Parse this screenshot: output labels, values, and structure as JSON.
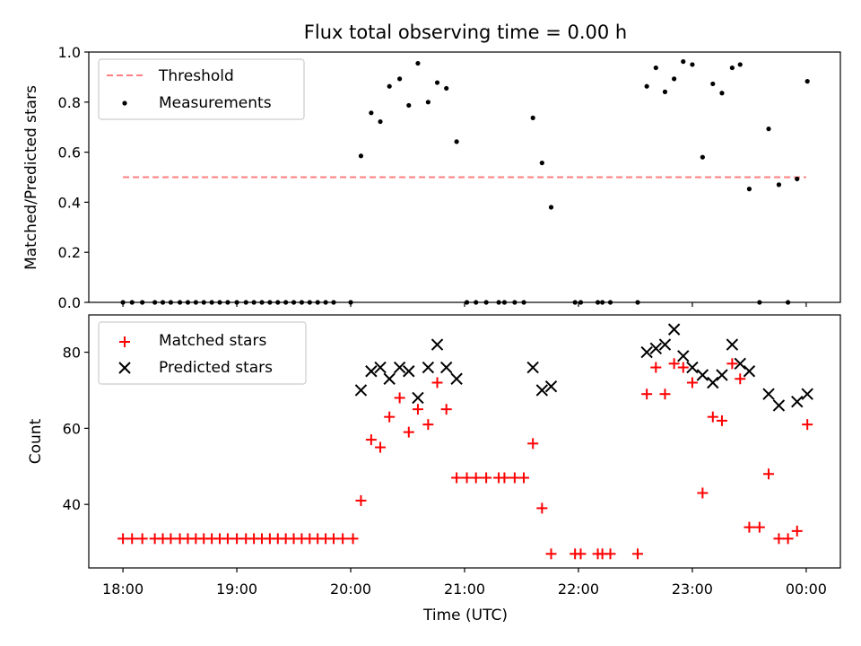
{
  "chart_data": {
    "title": "Flux total observing time = 0.00 h",
    "xlabel": "Time (UTC)",
    "x_ticks": [
      "18:00",
      "19:00",
      "20:00",
      "21:00",
      "22:00",
      "23:00",
      "00:00"
    ],
    "x_domain_hours": [
      17.7,
      24.3
    ],
    "top": {
      "type": "scatter",
      "ylabel": "Matched/Predicted stars",
      "ylim": [
        0,
        1.0
      ],
      "yticks": [
        "0.0",
        "0.2",
        "0.4",
        "0.6",
        "0.8",
        "1.0"
      ],
      "ytick_values": [
        0,
        0.2,
        0.4,
        0.6,
        0.8,
        1.0
      ],
      "legend": [
        "Threshold",
        "Measurements"
      ],
      "threshold": {
        "value": 0.5,
        "x_start": 18.0,
        "x_end": 24.0,
        "color": "#ff7f7f"
      },
      "measurements": [
        [
          18.0,
          0
        ],
        [
          18.08,
          0
        ],
        [
          18.17,
          0
        ],
        [
          18.28,
          0
        ],
        [
          18.35,
          0
        ],
        [
          18.42,
          0
        ],
        [
          18.5,
          0
        ],
        [
          18.57,
          0
        ],
        [
          18.64,
          0
        ],
        [
          18.71,
          0
        ],
        [
          18.78,
          0
        ],
        [
          18.85,
          0
        ],
        [
          18.92,
          0
        ],
        [
          19.0,
          0
        ],
        [
          19.08,
          0
        ],
        [
          19.15,
          0
        ],
        [
          19.22,
          0
        ],
        [
          19.29,
          0
        ],
        [
          19.36,
          0
        ],
        [
          19.43,
          0
        ],
        [
          19.5,
          0
        ],
        [
          19.57,
          0
        ],
        [
          19.64,
          0
        ],
        [
          19.71,
          0
        ],
        [
          19.78,
          0
        ],
        [
          19.85,
          0
        ],
        [
          20.0,
          0
        ],
        [
          20.09,
          0.585
        ],
        [
          20.18,
          0.757
        ],
        [
          20.26,
          0.722
        ],
        [
          20.34,
          0.863
        ],
        [
          20.43,
          0.893
        ],
        [
          20.51,
          0.787
        ],
        [
          20.59,
          0.955
        ],
        [
          20.68,
          0.8
        ],
        [
          20.76,
          0.878
        ],
        [
          20.84,
          0.855
        ],
        [
          20.93,
          0.642
        ],
        [
          21.02,
          0
        ],
        [
          21.1,
          0
        ],
        [
          21.19,
          0
        ],
        [
          21.3,
          0
        ],
        [
          21.35,
          0
        ],
        [
          21.44,
          0
        ],
        [
          21.52,
          0
        ],
        [
          21.6,
          0.737
        ],
        [
          21.68,
          0.557
        ],
        [
          21.76,
          0.38
        ],
        [
          21.97,
          0
        ],
        [
          22.02,
          0
        ],
        [
          22.17,
          0
        ],
        [
          22.21,
          0
        ],
        [
          22.28,
          0
        ],
        [
          22.52,
          0
        ],
        [
          22.6,
          0.863
        ],
        [
          22.68,
          0.937
        ],
        [
          22.76,
          0.841
        ],
        [
          22.84,
          0.893
        ],
        [
          22.92,
          0.962
        ],
        [
          23.0,
          0.95
        ],
        [
          23.09,
          0.58
        ],
        [
          23.18,
          0.873
        ],
        [
          23.26,
          0.836
        ],
        [
          23.35,
          0.937
        ],
        [
          23.42,
          0.95
        ],
        [
          23.5,
          0.453
        ],
        [
          23.59,
          0
        ],
        [
          23.67,
          0.693
        ],
        [
          23.76,
          0.47
        ],
        [
          23.84,
          0
        ],
        [
          23.92,
          0.493
        ],
        [
          24.01,
          0.883
        ]
      ]
    },
    "bottom": {
      "type": "scatter",
      "ylabel": "Count",
      "ylim": [
        23.3,
        89.8
      ],
      "yticks": [
        "40",
        "60",
        "80"
      ],
      "ytick_values": [
        40,
        60,
        80
      ],
      "legend": [
        "Matched stars",
        "Predicted stars"
      ],
      "matched": [
        [
          18.0,
          31
        ],
        [
          18.08,
          31
        ],
        [
          18.17,
          31
        ],
        [
          18.28,
          31
        ],
        [
          18.35,
          31
        ],
        [
          18.42,
          31
        ],
        [
          18.5,
          31
        ],
        [
          18.57,
          31
        ],
        [
          18.64,
          31
        ],
        [
          18.71,
          31
        ],
        [
          18.78,
          31
        ],
        [
          18.85,
          31
        ],
        [
          18.92,
          31
        ],
        [
          19.0,
          31
        ],
        [
          19.08,
          31
        ],
        [
          19.15,
          31
        ],
        [
          19.22,
          31
        ],
        [
          19.29,
          31
        ],
        [
          19.36,
          31
        ],
        [
          19.43,
          31
        ],
        [
          19.5,
          31
        ],
        [
          19.57,
          31
        ],
        [
          19.64,
          31
        ],
        [
          19.71,
          31
        ],
        [
          19.78,
          31
        ],
        [
          19.85,
          31
        ],
        [
          19.93,
          31
        ],
        [
          20.02,
          31
        ],
        [
          20.09,
          41
        ],
        [
          20.18,
          57
        ],
        [
          20.26,
          55
        ],
        [
          20.34,
          63
        ],
        [
          20.43,
          68
        ],
        [
          20.51,
          59
        ],
        [
          20.59,
          65
        ],
        [
          20.68,
          61
        ],
        [
          20.76,
          72
        ],
        [
          20.84,
          65
        ],
        [
          20.93,
          47
        ],
        [
          21.02,
          47
        ],
        [
          21.1,
          47
        ],
        [
          21.19,
          47
        ],
        [
          21.3,
          47
        ],
        [
          21.35,
          47
        ],
        [
          21.44,
          47
        ],
        [
          21.52,
          47
        ],
        [
          21.6,
          56
        ],
        [
          21.68,
          39
        ],
        [
          21.76,
          27
        ],
        [
          21.97,
          27
        ],
        [
          22.02,
          27
        ],
        [
          22.17,
          27
        ],
        [
          22.21,
          27
        ],
        [
          22.28,
          27
        ],
        [
          22.52,
          27
        ],
        [
          22.6,
          69
        ],
        [
          22.68,
          76
        ],
        [
          22.76,
          69
        ],
        [
          22.84,
          77
        ],
        [
          22.92,
          76
        ],
        [
          23.0,
          72
        ],
        [
          23.09,
          43
        ],
        [
          23.18,
          63
        ],
        [
          23.26,
          62
        ],
        [
          23.35,
          77
        ],
        [
          23.42,
          73
        ],
        [
          23.5,
          34
        ],
        [
          23.59,
          34
        ],
        [
          23.67,
          48
        ],
        [
          23.76,
          31
        ],
        [
          23.84,
          31
        ],
        [
          23.92,
          33
        ],
        [
          24.01,
          61
        ]
      ],
      "predicted": [
        [
          20.09,
          70
        ],
        [
          20.18,
          75
        ],
        [
          20.26,
          76
        ],
        [
          20.34,
          73
        ],
        [
          20.43,
          76
        ],
        [
          20.51,
          75
        ],
        [
          20.59,
          68
        ],
        [
          20.68,
          76
        ],
        [
          20.76,
          82
        ],
        [
          20.84,
          76
        ],
        [
          20.93,
          73
        ],
        [
          21.6,
          76
        ],
        [
          21.68,
          70
        ],
        [
          21.76,
          71
        ],
        [
          22.6,
          80
        ],
        [
          22.68,
          81
        ],
        [
          22.76,
          82
        ],
        [
          22.84,
          86
        ],
        [
          22.92,
          79
        ],
        [
          23.0,
          76
        ],
        [
          23.09,
          74
        ],
        [
          23.18,
          72
        ],
        [
          23.26,
          74
        ],
        [
          23.35,
          82
        ],
        [
          23.42,
          77
        ],
        [
          23.5,
          75
        ],
        [
          23.67,
          69
        ],
        [
          23.76,
          66
        ],
        [
          23.92,
          67
        ],
        [
          24.01,
          69
        ]
      ],
      "matched_color": "#ff0000",
      "predicted_color": "#000000"
    }
  }
}
